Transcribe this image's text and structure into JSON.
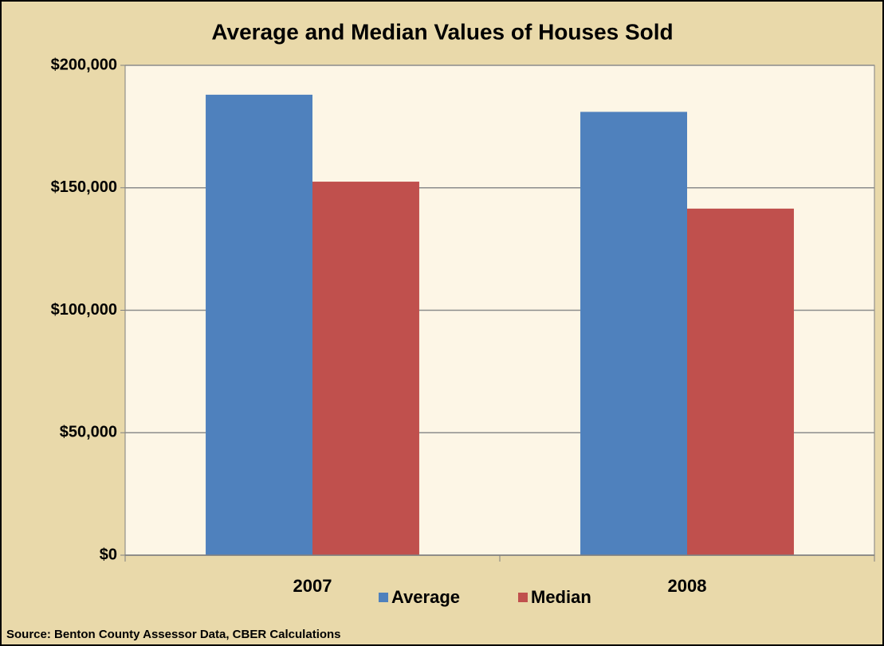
{
  "chart_data": {
    "type": "bar",
    "title": "Average and Median Values of Houses Sold",
    "categories": [
      "2007",
      "2008"
    ],
    "series": [
      {
        "name": "Average",
        "color": "#4f81bd",
        "values": [
          188000,
          181000
        ]
      },
      {
        "name": "Median",
        "color": "#c0504d",
        "values": [
          152500,
          141500
        ]
      }
    ],
    "ylim": [
      0,
      200000
    ],
    "yticks": [
      {
        "value": 0,
        "label": "$0"
      },
      {
        "value": 50000,
        "label": "$50,000"
      },
      {
        "value": 100000,
        "label": "$100,000"
      },
      {
        "value": 150000,
        "label": "$150,000"
      },
      {
        "value": 200000,
        "label": "$200,000"
      }
    ],
    "grid": true,
    "legend": "bottom",
    "source": "Source:  Benton County Assessor Data, CBER Calculations"
  }
}
